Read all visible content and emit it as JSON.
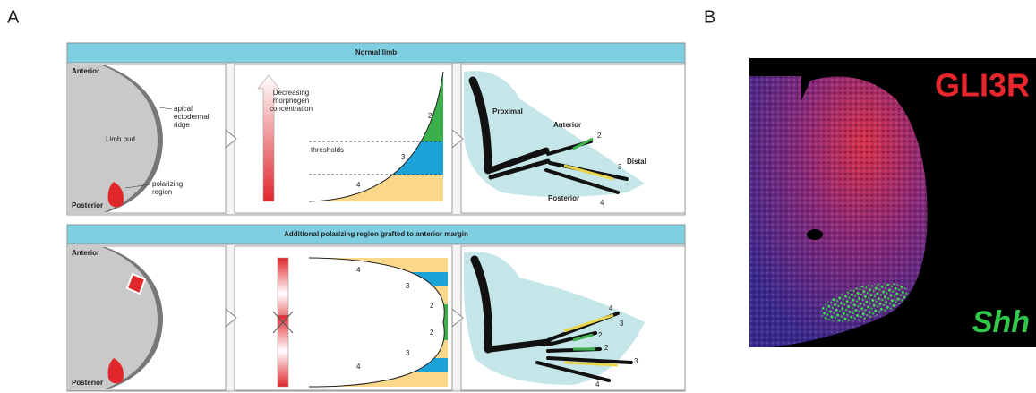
{
  "panel_labels": [
    "A",
    "B"
  ],
  "panel_a": {
    "rows": [
      {
        "header": "Normal limb",
        "bud": {
          "anterior": "Anterior",
          "posterior": "Posterior",
          "limb_bud": "Limb bud",
          "ridge": [
            "apical",
            "ectodermal",
            "ridge"
          ],
          "polarizing": [
            "polarizing",
            "region"
          ]
        },
        "gradient": {
          "axis_label": [
            "Decreasing",
            "morphogen",
            "concentration"
          ],
          "thresholds": "thresholds",
          "digits": [
            "2",
            "3",
            "4"
          ]
        },
        "skeleton": {
          "proximal": "Proximal",
          "anterior": "Anterior",
          "distal": "Distal",
          "posterior": "Posterior",
          "digits": [
            "2",
            "3",
            "4"
          ]
        }
      },
      {
        "header": "Additional polarizing region grafted to anterior margin",
        "bud": {
          "anterior": "Anterior",
          "posterior": "Posterior"
        },
        "gradient": {
          "digits": [
            "4",
            "3",
            "2",
            "2",
            "3",
            "4"
          ]
        },
        "skeleton": {
          "digits": [
            "4",
            "3",
            "2",
            "2",
            "3",
            "4"
          ]
        }
      }
    ]
  },
  "panel_b": {
    "gli3r": "GLI3R",
    "shh": "Shh"
  }
}
